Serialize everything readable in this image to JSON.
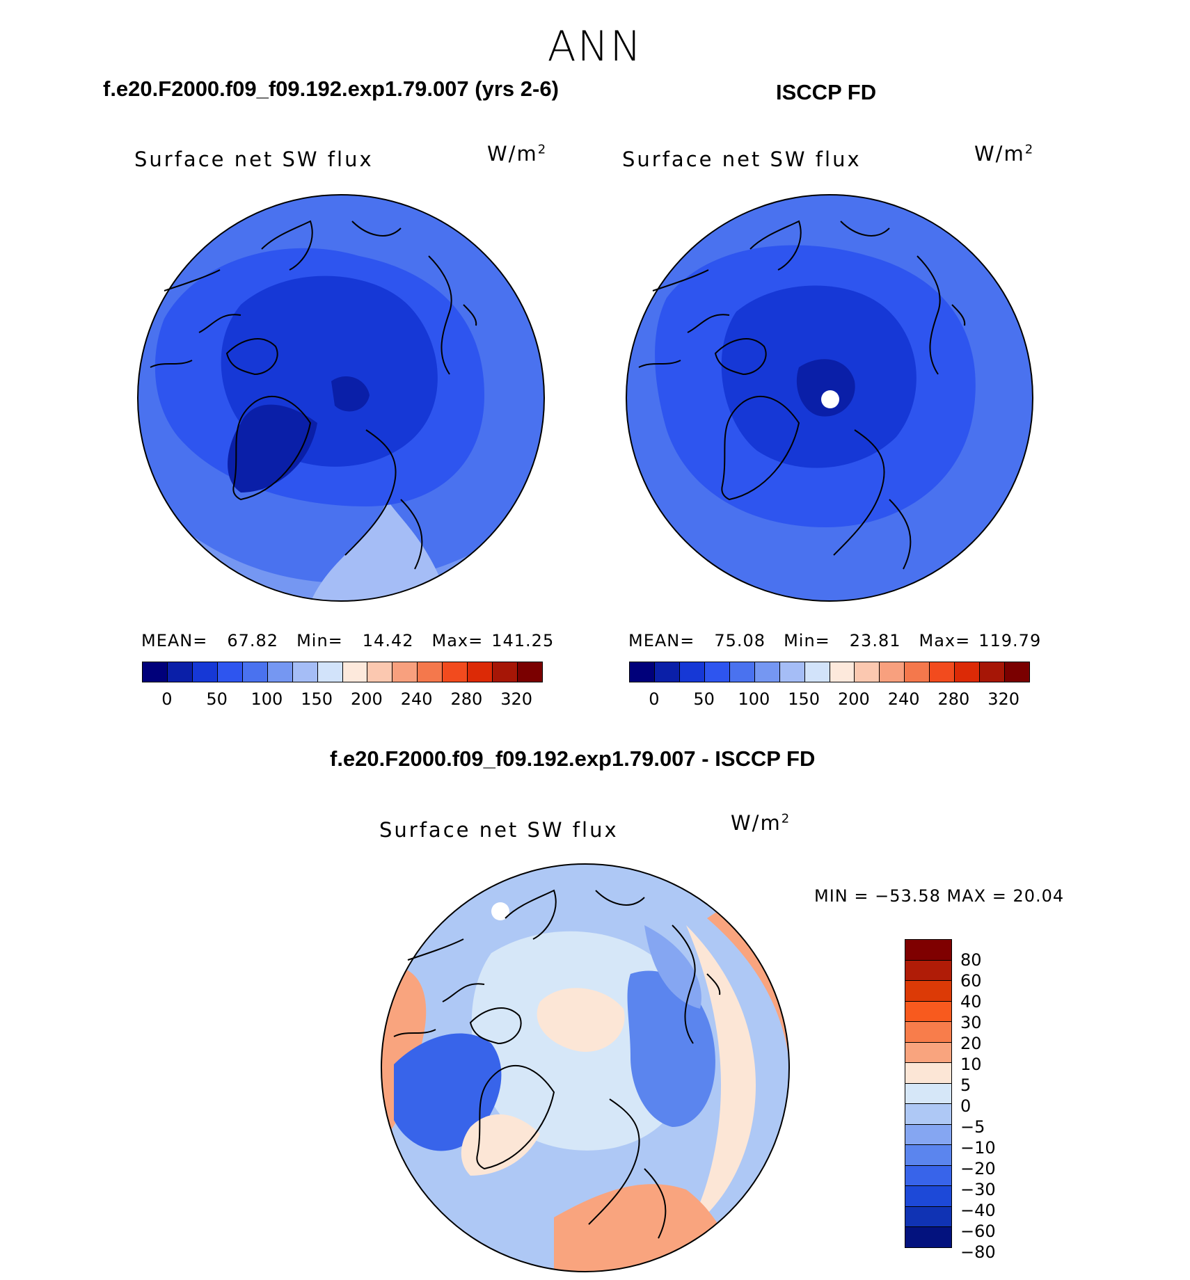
{
  "season": "ANN",
  "panels": {
    "model": {
      "title": "f.e20.F2000.f09_f09.192.exp1.79.007 (yrs 2-6)",
      "plot_title": "Surface net SW flux",
      "units_base": "W/m",
      "units_exp": "2",
      "mean_label": "MEAN=",
      "mean": "67.82",
      "min_label": "Min=",
      "min": "14.42",
      "max_label": "Max=",
      "max": "141.25"
    },
    "obs": {
      "title": "ISCCP FD",
      "plot_title": "Surface net SW flux",
      "units_base": "W/m",
      "units_exp": "2",
      "mean_label": "MEAN=",
      "mean": "75.08",
      "min_label": "Min=",
      "min": "23.81",
      "max_label": "Max=",
      "max": "119.79"
    },
    "diff": {
      "title": "f.e20.F2000.f09_f09.192.exp1.79.007 - ISCCP FD",
      "plot_title": "Surface net SW flux",
      "units_base": "W/m",
      "units_exp": "2",
      "minmax": "MIN = −53.58 MAX =   20.04"
    }
  },
  "colorbar_abs": {
    "colors": [
      "#00007a",
      "#0a1fa8",
      "#1638d6",
      "#2e55ef",
      "#4a72ef",
      "#7597f2",
      "#a5bdf6",
      "#d2e3fa",
      "#fde9dc",
      "#fbc8b0",
      "#f8a07e",
      "#f4784c",
      "#f24b1e",
      "#dc2a06",
      "#a61606",
      "#7a0000"
    ],
    "ticks": [
      "0",
      "50",
      "100",
      "150",
      "200",
      "240",
      "280",
      "320"
    ]
  },
  "colorbar_diff": {
    "colors": [
      "#7f0000",
      "#b01c07",
      "#dc3a06",
      "#f85a1e",
      "#f87d4b",
      "#f9a47e",
      "#fce6d6",
      "#d6e7f8",
      "#aec8f5",
      "#85a6f2",
      "#5b85ee",
      "#3864ea",
      "#1d49d8",
      "#1033b4",
      "#03127e"
    ],
    "ticks": [
      "80",
      "60",
      "40",
      "30",
      "20",
      "10",
      "5",
      "0",
      "−5",
      "−10",
      "−20",
      "−30",
      "−40",
      "−60",
      "−80"
    ]
  }
}
